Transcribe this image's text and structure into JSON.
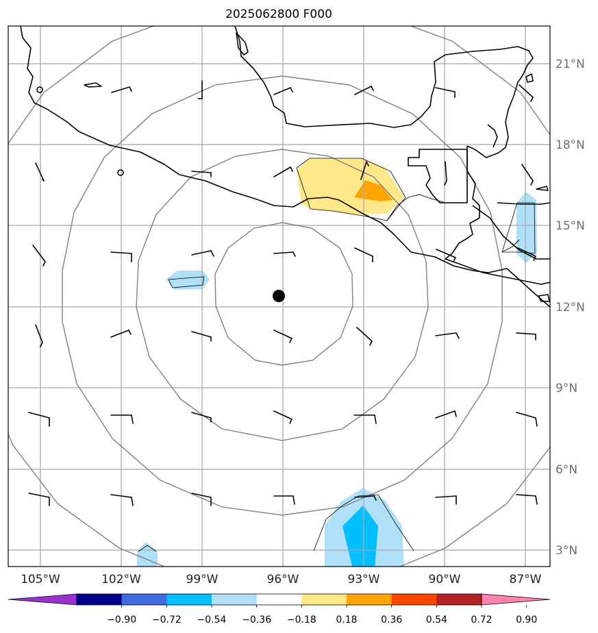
{
  "title": "2025062800 F000",
  "longitude_labels": [
    "105°W",
    "102°W",
    "99°W",
    "96°W",
    "93°W",
    "90°W",
    "87°W"
  ],
  "latitude_labels": [
    "21°N",
    "18°N",
    "15°N",
    "12°N",
    "9°N",
    "6°N",
    "3°N"
  ],
  "colorbar": {
    "tick_labels": [
      "−0.90",
      "−0.72",
      "−0.54",
      "−0.36",
      "−0.18",
      "0.18",
      "0.36",
      "0.54",
      "0.72",
      "0.90"
    ],
    "colors": [
      "#9932cc",
      "#00008b",
      "#4169e1",
      "#00bfff",
      "#b0e0f8",
      "#ffffff",
      "#ffe88a",
      "#ffa500",
      "#ff4500",
      "#b22222",
      "#ff82b0"
    ]
  },
  "storm_center": {
    "lon": -96.1,
    "lat": 12.4
  },
  "colors": {
    "grid": "#a8a8a8",
    "range_rings": "#808080",
    "coastline": "#000000",
    "positive_weak": "#ffe88a",
    "positive_mid": "#ffa500",
    "negative_weak": "#b0e0f8",
    "negative_mid": "#00bfff"
  }
}
